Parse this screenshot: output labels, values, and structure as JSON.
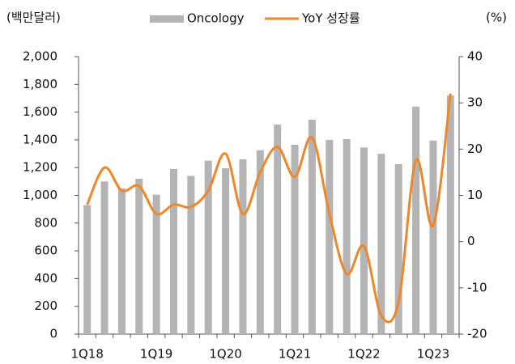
{
  "chart_data": {
    "type": "bar-line",
    "y_label": "(백만달러)",
    "y2_label": "(%)",
    "categories": [
      "1Q18",
      null,
      null,
      null,
      "1Q19",
      null,
      null,
      null,
      "1Q20",
      null,
      null,
      null,
      "1Q21",
      null,
      null,
      null,
      "1Q22",
      null,
      null,
      null,
      "1Q23",
      null
    ],
    "series": [
      {
        "name": "Oncology",
        "type": "bar",
        "color": "#b4b4b4",
        "values": [
          930,
          1100,
          1050,
          1120,
          1005,
          1190,
          1140,
          1250,
          1195,
          1260,
          1325,
          1510,
          1365,
          1545,
          1400,
          1405,
          1345,
          1300,
          1225,
          1640,
          1395,
          1720
        ]
      },
      {
        "name": "YoY 성장률",
        "type": "line",
        "axis": "y2",
        "color": "#f0862a",
        "values": [
          8,
          16,
          11,
          12,
          6,
          8,
          7.5,
          11,
          19,
          6,
          15,
          20.5,
          14,
          22.5,
          6,
          -7,
          -1,
          -16,
          -13,
          17.5,
          3.5,
          32
        ]
      }
    ],
    "ylim": [
      0,
      2000
    ],
    "yticks": [
      0,
      200,
      400,
      600,
      800,
      {
        "value": 1000,
        "label": "1,000"
      },
      {
        "value": 1200,
        "label": "1,200"
      },
      {
        "value": 1400,
        "label": "1,400"
      },
      {
        "value": 1600,
        "label": "1,600"
      },
      {
        "value": 1800,
        "label": "1,800"
      },
      {
        "value": 2000,
        "label": "2,000"
      }
    ],
    "y2lim": [
      -20,
      40
    ],
    "y2ticks": [
      -20,
      -10,
      0,
      10,
      20,
      30,
      40
    ],
    "legend": "top"
  }
}
